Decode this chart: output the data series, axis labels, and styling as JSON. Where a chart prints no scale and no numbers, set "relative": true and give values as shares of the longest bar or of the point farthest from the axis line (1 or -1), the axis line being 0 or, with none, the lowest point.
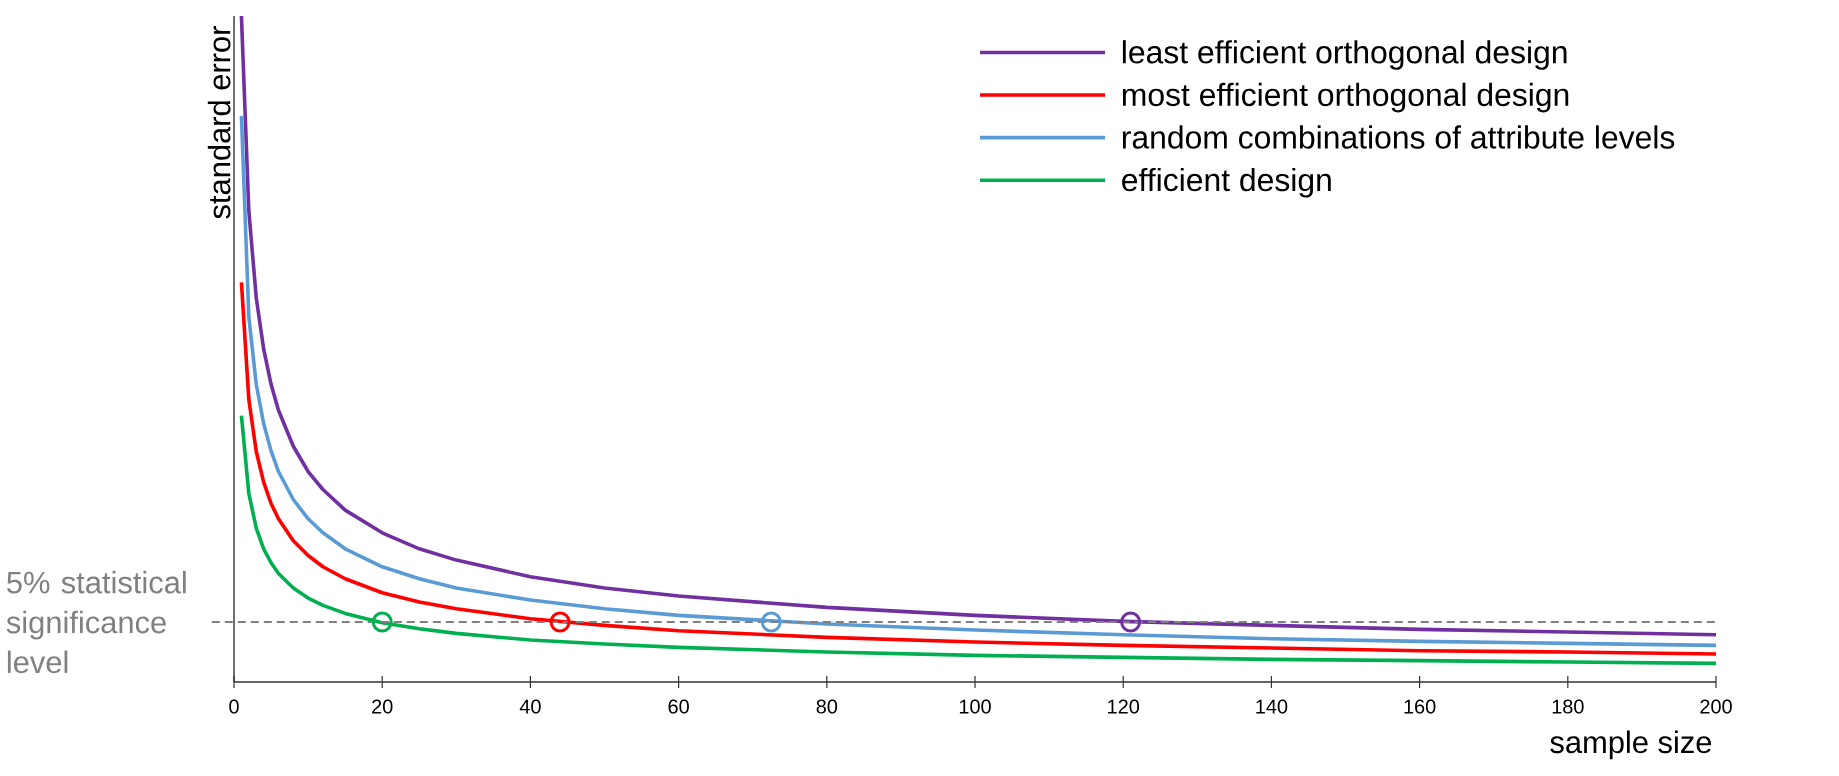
{
  "chart_data": {
    "type": "line",
    "relative": true,
    "xlabel": "sample size",
    "ylabel": "standard error",
    "xlim": [
      0,
      200
    ],
    "xticks": [
      0,
      20,
      40,
      60,
      80,
      100,
      120,
      140,
      160,
      180,
      200
    ],
    "x": [
      1,
      2,
      3,
      4,
      5,
      6,
      8,
      10,
      12,
      15,
      20,
      25,
      30,
      40,
      50,
      60,
      80,
      100,
      120,
      140,
      160,
      180,
      200
    ],
    "legend": "top right",
    "series": [
      {
        "name": "least efficient orthogonal design",
        "color": "#7030a0",
        "values": [
          1.0,
          0.707,
          0.577,
          0.5,
          0.447,
          0.408,
          0.354,
          0.316,
          0.289,
          0.258,
          0.224,
          0.2,
          0.183,
          0.158,
          0.141,
          0.129,
          0.112,
          0.1,
          0.091,
          0.085,
          0.079,
          0.075,
          0.071
        ]
      },
      {
        "name": "most efficient orthogonal design",
        "color": "#ff0000",
        "values": [
          0.6,
          0.424,
          0.346,
          0.3,
          0.268,
          0.245,
          0.212,
          0.19,
          0.173,
          0.155,
          0.134,
          0.12,
          0.11,
          0.095,
          0.085,
          0.077,
          0.067,
          0.06,
          0.055,
          0.051,
          0.047,
          0.045,
          0.042
        ]
      },
      {
        "name": "random combinations of attribute levels",
        "color": "#5b9bd5",
        "values": [
          0.85,
          0.548,
          0.447,
          0.388,
          0.347,
          0.316,
          0.274,
          0.245,
          0.224,
          0.2,
          0.173,
          0.155,
          0.141,
          0.123,
          0.11,
          0.1,
          0.087,
          0.078,
          0.071,
          0.065,
          0.061,
          0.058,
          0.055
        ]
      },
      {
        "name": "efficient design",
        "color": "#00b050",
        "values": [
          0.4,
          0.283,
          0.231,
          0.2,
          0.179,
          0.163,
          0.141,
          0.126,
          0.115,
          0.103,
          0.089,
          0.08,
          0.073,
          0.063,
          0.057,
          0.052,
          0.045,
          0.04,
          0.037,
          0.034,
          0.032,
          0.03,
          0.028
        ]
      },
      {
        "type": "scatter",
        "marker": "circle",
        "x": [
          20,
          44,
          72.5,
          121
        ],
        "values": [
          0.09,
          0.09,
          0.09,
          0.09
        ],
        "colors": [
          "#00b050",
          "#ff0000",
          "#5b9bd5",
          "#7030a0"
        ]
      }
    ],
    "ref_lines": [
      {
        "axis": "y",
        "value": 0.09,
        "label": "5% statistical significance level",
        "color": "#808080",
        "line_style": "dashed"
      }
    ]
  }
}
